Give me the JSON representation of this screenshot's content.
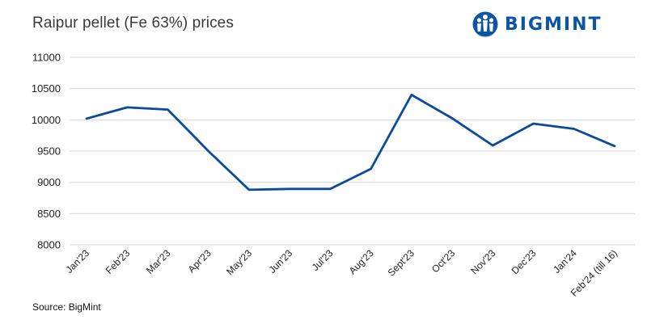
{
  "title": "Raipur pellet (Fe 63%) prices",
  "source": "Source: BigMint",
  "logo": {
    "text": "BIGMINT",
    "icon": "bigmint-people-logo-icon",
    "color": "#0b55a8"
  },
  "chart_data": {
    "type": "line",
    "title": "Raipur pellet (Fe 63%) prices",
    "xlabel": "",
    "ylabel": "",
    "categories": [
      "Jan'23",
      "Feb'23",
      "Mar'23",
      "Apr'23",
      "May'23",
      "Jun'23",
      "Jul'23",
      "Aug'23",
      "Sept'23",
      "Oct'23",
      "Nov'23",
      "Dec'23",
      "Jan'24",
      "Feb'24 (till 16)"
    ],
    "series": [
      {
        "values": [
          10020,
          10200,
          10165,
          9500,
          8880,
          8895,
          8895,
          9215,
          10400,
          10025,
          9590,
          9940,
          9855,
          9580
        ],
        "color": "#0b4a9a"
      }
    ],
    "ylim": [
      8000,
      11000
    ],
    "yticks": [
      8000,
      8500,
      9000,
      9500,
      10000,
      10500,
      11000
    ],
    "grid": true,
    "legend": "none"
  }
}
